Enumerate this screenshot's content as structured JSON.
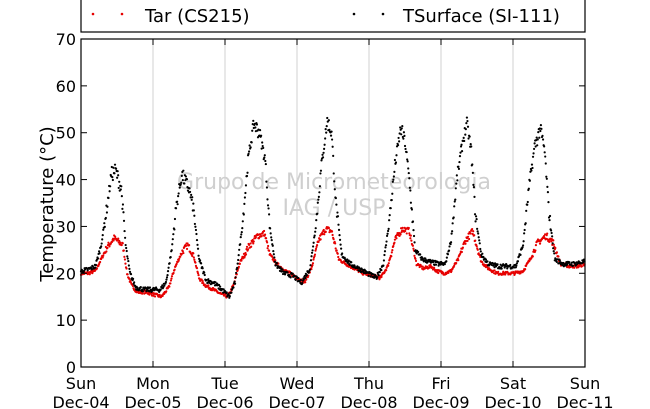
{
  "chart_data": {
    "type": "scatter",
    "ylabel": "Temperature (°C)",
    "ylim": [
      0,
      70
    ],
    "yticks": [
      0,
      10,
      20,
      30,
      40,
      50,
      60,
      70
    ],
    "xlim": [
      "2016-12-04 00:00",
      "2016-12-11 00:00"
    ],
    "xtick_labels": [
      [
        "Sun",
        "Dec-04"
      ],
      [
        "Mon",
        "Dec-05"
      ],
      [
        "Tue",
        "Dec-06"
      ],
      [
        "Wed",
        "Dec-07"
      ],
      [
        "Thu",
        "Dec-08"
      ],
      [
        "Fri",
        "Dec-09"
      ],
      [
        "Sat",
        "Dec-10"
      ],
      [
        "Sun",
        "Dec-11"
      ]
    ],
    "grid": "vertical",
    "legend_placement": "top",
    "watermark": [
      "Grupo de Micrometeorologia",
      "IAG / USP"
    ],
    "series": [
      {
        "name": "Tar (CS215)",
        "color": "#e60000",
        "marker": "dot",
        "points": [
          [
            0.0,
            20.0
          ],
          [
            0.1,
            20.0
          ],
          [
            0.2,
            20.5
          ],
          [
            0.28,
            23.0
          ],
          [
            0.36,
            25.5
          ],
          [
            0.46,
            27.5
          ],
          [
            0.58,
            26.0
          ],
          [
            0.64,
            20.0
          ],
          [
            0.7,
            17.5
          ],
          [
            0.78,
            16.0
          ],
          [
            0.9,
            16.0
          ],
          [
            1.0,
            15.5
          ],
          [
            1.12,
            15.0
          ],
          [
            1.22,
            17.0
          ],
          [
            1.3,
            21.0
          ],
          [
            1.4,
            24.5
          ],
          [
            1.48,
            26.0
          ],
          [
            1.56,
            24.0
          ],
          [
            1.64,
            19.0
          ],
          [
            1.72,
            17.5
          ],
          [
            1.84,
            16.5
          ],
          [
            1.95,
            15.5
          ],
          [
            2.04,
            15.0
          ],
          [
            2.12,
            17.5
          ],
          [
            2.2,
            22.0
          ],
          [
            2.32,
            25.5
          ],
          [
            2.45,
            28.0
          ],
          [
            2.55,
            28.5
          ],
          [
            2.62,
            24.0
          ],
          [
            2.72,
            22.0
          ],
          [
            2.84,
            20.5
          ],
          [
            2.96,
            19.5
          ],
          [
            3.1,
            18.0
          ],
          [
            3.2,
            21.0
          ],
          [
            3.3,
            27.0
          ],
          [
            3.4,
            29.5
          ],
          [
            3.48,
            29.0
          ],
          [
            3.58,
            23.0
          ],
          [
            3.68,
            22.0
          ],
          [
            3.8,
            21.0
          ],
          [
            3.92,
            20.0
          ],
          [
            4.05,
            19.5
          ],
          [
            4.16,
            19.0
          ],
          [
            4.26,
            21.5
          ],
          [
            4.36,
            27.0
          ],
          [
            4.46,
            29.5
          ],
          [
            4.56,
            29.0
          ],
          [
            4.66,
            22.0
          ],
          [
            4.76,
            21.0
          ],
          [
            4.86,
            21.5
          ],
          [
            4.94,
            20.5
          ],
          [
            5.05,
            20.0
          ],
          [
            5.14,
            20.5
          ],
          [
            5.24,
            23.0
          ],
          [
            5.34,
            27.0
          ],
          [
            5.44,
            29.0
          ],
          [
            5.56,
            22.5
          ],
          [
            5.66,
            21.0
          ],
          [
            5.78,
            20.0
          ],
          [
            5.9,
            20.0
          ],
          [
            6.02,
            20.0
          ],
          [
            6.14,
            20.5
          ],
          [
            6.24,
            23.0
          ],
          [
            6.34,
            26.5
          ],
          [
            6.46,
            28.0
          ],
          [
            6.56,
            26.5
          ],
          [
            6.66,
            22.0
          ],
          [
            6.78,
            21.5
          ],
          [
            6.9,
            21.5
          ],
          [
            7.0,
            22.0
          ]
        ]
      },
      {
        "name": "TSurface (SI-111)",
        "color": "#000000",
        "marker": "dot",
        "points": [
          [
            0.0,
            20.5
          ],
          [
            0.1,
            20.8
          ],
          [
            0.2,
            21.5
          ],
          [
            0.28,
            26.0
          ],
          [
            0.36,
            34.0
          ],
          [
            0.42,
            41.0
          ],
          [
            0.48,
            42.0
          ],
          [
            0.56,
            38.0
          ],
          [
            0.62,
            26.0
          ],
          [
            0.68,
            20.0
          ],
          [
            0.76,
            17.0
          ],
          [
            0.88,
            16.5
          ],
          [
            1.0,
            16.5
          ],
          [
            1.1,
            16.5
          ],
          [
            1.18,
            18.0
          ],
          [
            1.26,
            25.0
          ],
          [
            1.32,
            34.0
          ],
          [
            1.4,
            41.0
          ],
          [
            1.5,
            38.0
          ],
          [
            1.56,
            34.0
          ],
          [
            1.64,
            23.0
          ],
          [
            1.74,
            18.5
          ],
          [
            1.84,
            18.0
          ],
          [
            1.96,
            16.5
          ],
          [
            2.06,
            15.0
          ],
          [
            2.14,
            18.0
          ],
          [
            2.24,
            30.0
          ],
          [
            2.32,
            44.0
          ],
          [
            2.4,
            52.0
          ],
          [
            2.48,
            50.0
          ],
          [
            2.56,
            44.0
          ],
          [
            2.62,
            30.0
          ],
          [
            2.7,
            22.0
          ],
          [
            2.82,
            20.0
          ],
          [
            2.94,
            19.5
          ],
          [
            3.06,
            18.0
          ],
          [
            3.18,
            21.0
          ],
          [
            3.26,
            30.0
          ],
          [
            3.34,
            43.0
          ],
          [
            3.42,
            52.5
          ],
          [
            3.48,
            50.0
          ],
          [
            3.54,
            35.0
          ],
          [
            3.62,
            24.0
          ],
          [
            3.74,
            22.0
          ],
          [
            3.86,
            21.0
          ],
          [
            3.98,
            20.0
          ],
          [
            4.1,
            19.0
          ],
          [
            4.2,
            22.0
          ],
          [
            4.28,
            31.0
          ],
          [
            4.36,
            43.0
          ],
          [
            4.44,
            51.0
          ],
          [
            4.5,
            48.0
          ],
          [
            4.56,
            40.0
          ],
          [
            4.64,
            25.0
          ],
          [
            4.74,
            23.0
          ],
          [
            4.84,
            22.5
          ],
          [
            4.96,
            22.0
          ],
          [
            5.06,
            22.0
          ],
          [
            5.14,
            27.0
          ],
          [
            5.22,
            40.0
          ],
          [
            5.3,
            48.0
          ],
          [
            5.36,
            52.0
          ],
          [
            5.42,
            46.0
          ],
          [
            5.48,
            32.0
          ],
          [
            5.56,
            24.0
          ],
          [
            5.66,
            22.0
          ],
          [
            5.8,
            21.5
          ],
          [
            5.92,
            21.5
          ],
          [
            6.04,
            21.5
          ],
          [
            6.14,
            26.0
          ],
          [
            6.22,
            38.0
          ],
          [
            6.3,
            47.0
          ],
          [
            6.38,
            51.0
          ],
          [
            6.44,
            46.0
          ],
          [
            6.5,
            33.0
          ],
          [
            6.58,
            23.0
          ],
          [
            6.7,
            22.0
          ],
          [
            6.84,
            22.0
          ],
          [
            7.0,
            22.5
          ]
        ]
      }
    ]
  }
}
